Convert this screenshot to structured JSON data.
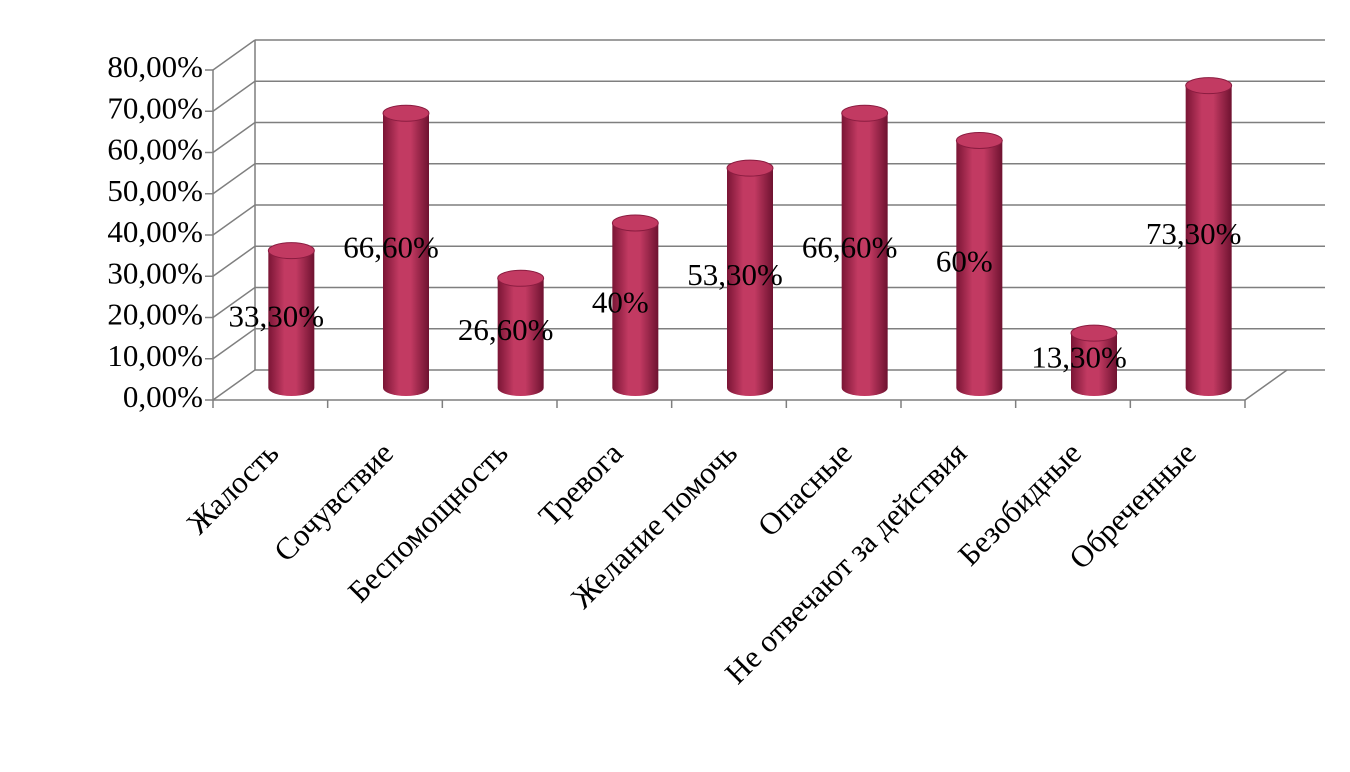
{
  "chart_data": {
    "type": "bar",
    "style": "cylinder-3d",
    "categories": [
      "Жалость",
      "Сочувствие",
      "Беспомощность",
      "Тревога",
      "Желание помочь",
      "Опасные",
      "Не отвечают за действия",
      "Безобидные",
      "Обреченные"
    ],
    "values": [
      33.3,
      66.6,
      26.6,
      40,
      53.3,
      66.6,
      60,
      13.3,
      73.3
    ],
    "value_labels": [
      "33,30%",
      "66,60%",
      "26,60%",
      "40%",
      "53,30%",
      "66,60%",
      "60%",
      "13,30%",
      "73,30%"
    ],
    "color": "#c23a62",
    "ylim": [
      0,
      80
    ],
    "yticks": [
      {
        "value": 0,
        "label": "0,00%"
      },
      {
        "value": 10,
        "label": "10,00%"
      },
      {
        "value": 20,
        "label": "20,00%"
      },
      {
        "value": 30,
        "label": "30,00%"
      },
      {
        "value": 40,
        "label": "40,00%"
      },
      {
        "value": 50,
        "label": "50,00%"
      },
      {
        "value": 60,
        "label": "60,00%"
      },
      {
        "value": 70,
        "label": "70,00%"
      },
      {
        "value": 80,
        "label": "80,00%"
      }
    ],
    "grid": true
  }
}
